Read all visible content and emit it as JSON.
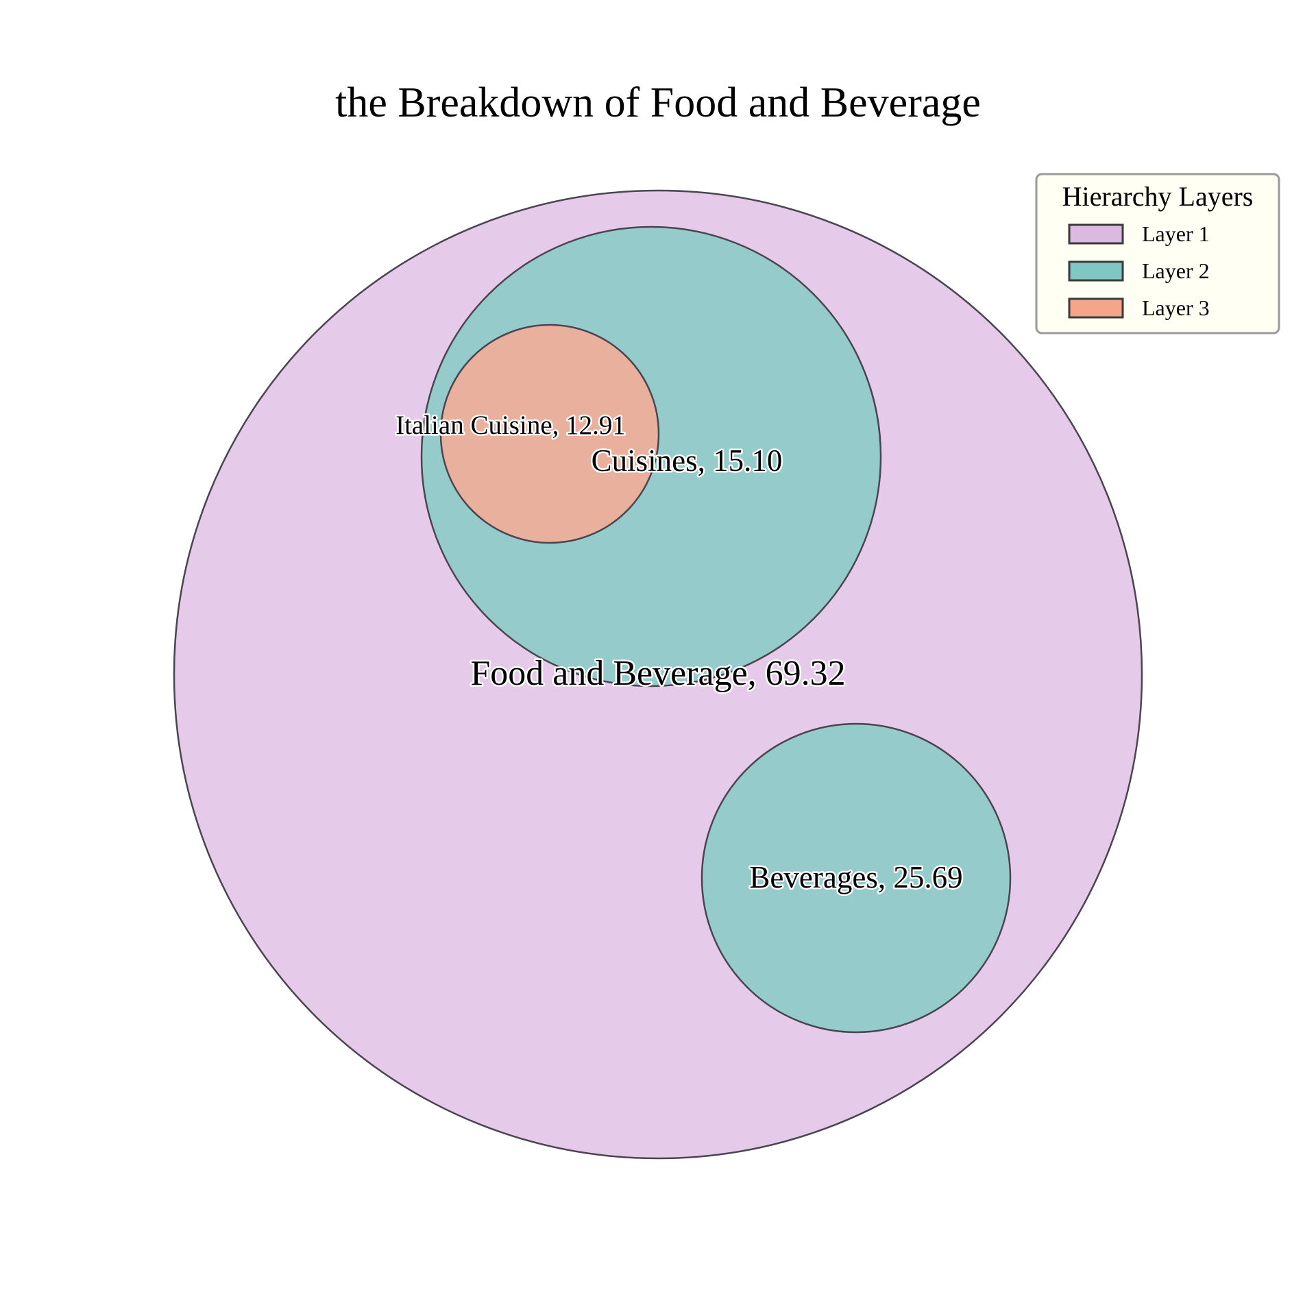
{
  "chart_data": {
    "type": "bubble",
    "title": "the Breakdown of Food and Beverage",
    "nodes": [
      {
        "name": "Food and Beverage",
        "value": 69.32,
        "label": "Food and Beverage, 69.32",
        "layer": 1,
        "parent": null
      },
      {
        "name": "Cuisines",
        "value": 15.1,
        "label": "Cuisines, 15.10",
        "layer": 2,
        "parent": "Food and Beverage"
      },
      {
        "name": "Beverages",
        "value": 25.69,
        "label": "Beverages, 25.69",
        "layer": 2,
        "parent": "Food and Beverage"
      },
      {
        "name": "Italian Cuisine",
        "value": 12.91,
        "label": "Italian Cuisine, 12.91",
        "layer": 3,
        "parent": "Cuisines"
      }
    ],
    "legend": {
      "title": "Hierarchy Layers",
      "position": "top-right",
      "items": [
        {
          "label": "Layer 1",
          "color": "#dcb9e0"
        },
        {
          "label": "Layer 2",
          "color": "#7ec8c4"
        },
        {
          "label": "Layer 3",
          "color": "#f4a58a"
        }
      ]
    },
    "colors": {
      "layer1_fill": "#e5cae9",
      "layer2_fill": "#96cbcb",
      "layer3_fill": "#e8b09d",
      "edge": "#4a4550",
      "legend_background": "#fffff4"
    }
  }
}
